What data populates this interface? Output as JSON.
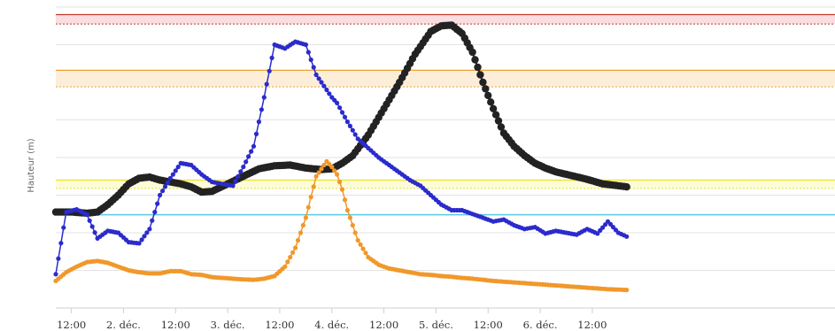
{
  "chart_data": {
    "type": "line",
    "ylabel": "Hauteur (m)",
    "xlim": [
      0.35,
      7.83
    ],
    "ylim": [
      0,
      8
    ],
    "y_ticks": [
      0,
      1,
      2,
      3,
      4,
      5,
      6,
      7,
      8
    ],
    "grid": true,
    "legend": "none",
    "x_ticks": [
      {
        "x": 0.5,
        "label": "12:00"
      },
      {
        "x": 1.0,
        "label": "2. déc."
      },
      {
        "x": 1.5,
        "label": "12:00"
      },
      {
        "x": 2.0,
        "label": "3. déc."
      },
      {
        "x": 2.5,
        "label": "12:00"
      },
      {
        "x": 3.0,
        "label": "4. déc."
      },
      {
        "x": 3.5,
        "label": "12:00"
      },
      {
        "x": 4.0,
        "label": "5. déc."
      },
      {
        "x": 4.5,
        "label": "12:00"
      },
      {
        "x": 5.0,
        "label": "6. déc."
      },
      {
        "x": 5.5,
        "label": "12:00"
      }
    ],
    "thresholds": [
      {
        "type": "band",
        "from": 7.55,
        "to": 7.8,
        "fill": "#f8d7da",
        "line_color": "#c0392b"
      },
      {
        "type": "band",
        "from": 5.88,
        "to": 6.32,
        "fill": "#fdebd3",
        "line_color": "#f0a030"
      },
      {
        "type": "band",
        "from": 3.18,
        "to": 3.4,
        "fill": "#fdfbd0",
        "line_color": "#e8e030"
      },
      {
        "type": "line",
        "value": 2.48,
        "line_color": "#5bc8e0"
      }
    ],
    "series": [
      {
        "color": "#222222",
        "marker_radius": 4.2,
        "x": [
          0.35,
          0.5,
          0.65,
          0.75,
          0.85,
          0.95,
          1.05,
          1.15,
          1.25,
          1.35,
          1.45,
          1.55,
          1.65,
          1.75,
          1.85,
          2.0,
          2.15,
          2.3,
          2.45,
          2.6,
          2.75,
          2.9,
          3.0,
          3.1,
          3.2,
          3.35,
          3.5,
          3.65,
          3.8,
          3.95,
          4.05,
          4.15,
          4.25,
          4.35,
          4.45,
          4.55,
          4.65,
          4.75,
          4.85,
          4.95,
          5.05,
          5.15,
          5.3,
          5.45,
          5.6,
          5.75,
          5.83
        ],
        "y": [
          2.55,
          2.55,
          2.52,
          2.55,
          2.75,
          3.0,
          3.3,
          3.45,
          3.48,
          3.4,
          3.35,
          3.3,
          3.22,
          3.08,
          3.1,
          3.3,
          3.5,
          3.7,
          3.78,
          3.8,
          3.72,
          3.68,
          3.7,
          3.85,
          4.05,
          4.6,
          5.3,
          6.0,
          6.75,
          7.35,
          7.5,
          7.52,
          7.3,
          6.8,
          6.0,
          5.3,
          4.65,
          4.3,
          4.05,
          3.85,
          3.72,
          3.62,
          3.52,
          3.42,
          3.3,
          3.25,
          3.22
        ]
      },
      {
        "color": "#2b2bcc",
        "marker_radius": 2.6,
        "x": [
          0.35,
          0.45,
          0.55,
          0.65,
          0.75,
          0.85,
          0.95,
          1.05,
          1.15,
          1.25,
          1.35,
          1.45,
          1.55,
          1.65,
          1.75,
          1.85,
          1.95,
          2.05,
          2.15,
          2.25,
          2.35,
          2.45,
          2.55,
          2.65,
          2.75,
          2.85,
          2.95,
          3.0,
          3.05,
          3.1,
          3.15,
          3.25,
          3.35,
          3.45,
          3.55,
          3.65,
          3.75,
          3.85,
          3.95,
          4.05,
          4.15,
          4.25,
          4.35,
          4.45,
          4.55,
          4.65,
          4.75,
          4.85,
          4.95,
          5.05,
          5.15,
          5.25,
          5.35,
          5.45,
          5.55,
          5.65,
          5.75,
          5.83
        ],
        "y": [
          0.9,
          2.55,
          2.62,
          2.48,
          1.85,
          2.05,
          2.0,
          1.75,
          1.72,
          2.1,
          3.0,
          3.45,
          3.85,
          3.8,
          3.55,
          3.35,
          3.3,
          3.25,
          3.75,
          4.3,
          5.6,
          7.0,
          6.9,
          7.08,
          7.0,
          6.2,
          5.8,
          5.6,
          5.45,
          5.2,
          4.95,
          4.5,
          4.25,
          4.0,
          3.8,
          3.6,
          3.4,
          3.25,
          3.0,
          2.75,
          2.6,
          2.6,
          2.5,
          2.4,
          2.3,
          2.35,
          2.2,
          2.1,
          2.15,
          1.98,
          2.05,
          2.0,
          1.95,
          2.1,
          1.98,
          2.3,
          2.0,
          1.9
        ]
      },
      {
        "color": "#f0982a",
        "marker_radius": 2.6,
        "x": [
          0.35,
          0.45,
          0.55,
          0.65,
          0.75,
          0.85,
          0.95,
          1.05,
          1.15,
          1.25,
          1.35,
          1.45,
          1.55,
          1.65,
          1.75,
          1.85,
          1.95,
          2.05,
          2.15,
          2.25,
          2.35,
          2.45,
          2.55,
          2.65,
          2.75,
          2.85,
          2.95,
          3.0,
          3.05,
          3.1,
          3.15,
          3.25,
          3.35,
          3.45,
          3.55,
          3.65,
          3.75,
          3.85,
          3.95,
          4.05,
          4.15,
          4.25,
          4.35,
          4.45,
          4.55,
          4.65,
          4.75,
          4.85,
          4.95,
          5.05,
          5.15,
          5.25,
          5.35,
          5.45,
          5.55,
          5.65,
          5.75,
          5.83
        ],
        "y": [
          0.72,
          0.95,
          1.1,
          1.22,
          1.25,
          1.2,
          1.1,
          1.0,
          0.95,
          0.92,
          0.92,
          0.98,
          0.98,
          0.9,
          0.88,
          0.82,
          0.8,
          0.78,
          0.76,
          0.75,
          0.78,
          0.85,
          1.1,
          1.6,
          2.4,
          3.5,
          3.9,
          3.75,
          3.55,
          3.15,
          2.6,
          1.8,
          1.35,
          1.15,
          1.05,
          1.0,
          0.95,
          0.9,
          0.88,
          0.85,
          0.83,
          0.8,
          0.78,
          0.75,
          0.72,
          0.7,
          0.68,
          0.66,
          0.64,
          0.62,
          0.6,
          0.58,
          0.56,
          0.54,
          0.52,
          0.5,
          0.49,
          0.48
        ]
      }
    ]
  }
}
